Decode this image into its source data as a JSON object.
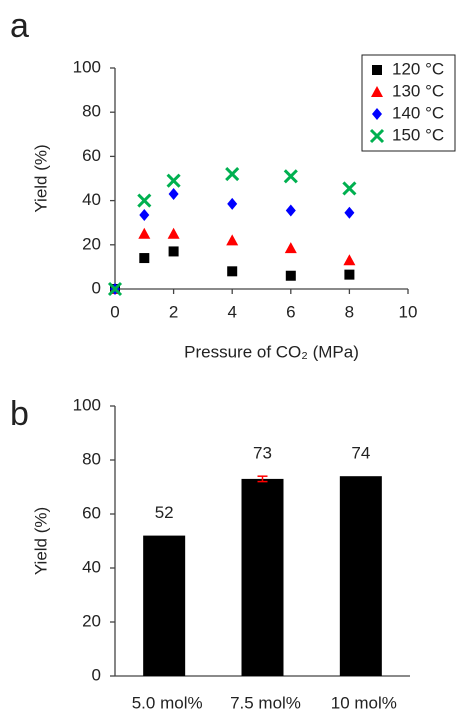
{
  "chart_data": [
    {
      "type": "scatter",
      "panel": "a",
      "xlabel": "Pressure of CO₂ (MPa)",
      "ylabel": "Yield (%)",
      "x": [
        0,
        1,
        2,
        4,
        6,
        8
      ],
      "series": [
        {
          "name": "120 °C",
          "color": "#000000",
          "marker": "square",
          "values": [
            0,
            14,
            17,
            8,
            6,
            6.5
          ]
        },
        {
          "name": "130 °C",
          "color": "#ff0000",
          "marker": "triangle",
          "values": [
            0,
            25,
            25,
            22,
            18.5,
            13
          ]
        },
        {
          "name": "140 °C",
          "color": "#0000ff",
          "marker": "diamond",
          "values": [
            0,
            33.5,
            43,
            38.5,
            35.5,
            34.5
          ]
        },
        {
          "name": "150 °C",
          "color": "#00b050",
          "marker": "x",
          "values": [
            0,
            40,
            49,
            52,
            51,
            45.5
          ]
        }
      ],
      "xlim": [
        0,
        10
      ],
      "xticks": [
        0,
        2,
        4,
        6,
        8,
        10
      ],
      "ylim": [
        0,
        100
      ],
      "yticks": [
        0,
        20,
        40,
        60,
        80,
        100
      ],
      "legend": "upper right"
    },
    {
      "type": "bar",
      "panel": "b",
      "ylabel": "Yield (%)",
      "categories": [
        "5.0 mol%",
        "7.5 mol%",
        "10 mol%"
      ],
      "values": [
        52,
        73,
        74
      ],
      "errors": [
        null,
        1,
        null
      ],
      "color": "#000000",
      "error_color": "#ff0000",
      "ylim": [
        0,
        100
      ],
      "yticks": [
        0,
        20,
        40,
        60,
        80,
        100
      ]
    }
  ]
}
